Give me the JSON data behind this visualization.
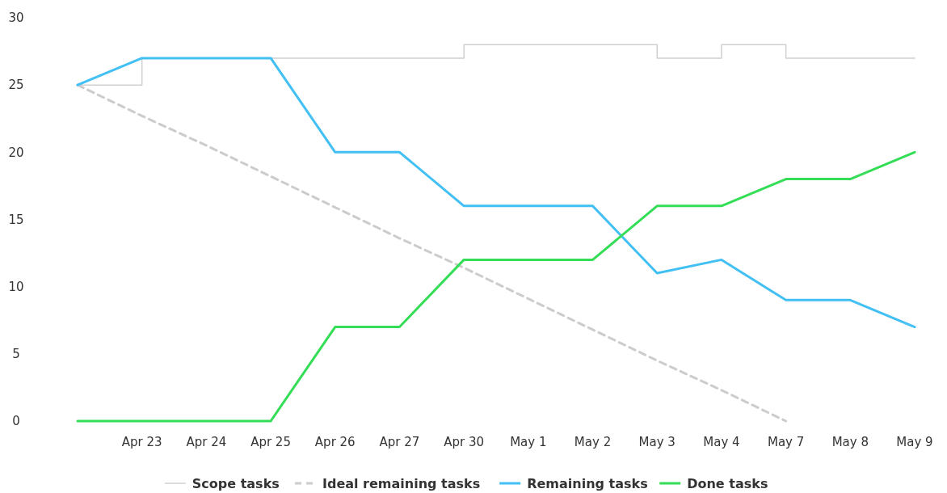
{
  "chart_data": {
    "type": "line",
    "categories": [
      null,
      "Apr 23",
      "Apr 24",
      "Apr 25",
      "Apr 26",
      "Apr 27",
      "Apr 30",
      "May 1",
      "May 2",
      "May 3",
      "May 4",
      "May 7",
      "May 8",
      "May 9"
    ],
    "ylim": [
      0,
      30
    ],
    "yticks": [
      0,
      5,
      10,
      15,
      20,
      25,
      30
    ],
    "grid": false,
    "legend": "bottom",
    "marker": "none",
    "series": [
      {
        "name": "Scope tasks",
        "type": "step",
        "color": "#d0d0d0",
        "line_style": "solid",
        "values": [
          25,
          27,
          27,
          27,
          27,
          27,
          28,
          28,
          28,
          27,
          28,
          27,
          27,
          27
        ]
      },
      {
        "name": "Ideal remaining tasks",
        "color": "#cccccc",
        "line_style": "dashed",
        "values": [
          25,
          22.7,
          20.5,
          18.2,
          15.9,
          13.6,
          11.4,
          9.1,
          6.8,
          4.5,
          2.3,
          0,
          null,
          null
        ]
      },
      {
        "name": "Remaining tasks",
        "color": "#42c0f4",
        "line_style": "solid",
        "values": [
          25,
          27,
          27,
          27,
          20,
          20,
          16,
          16,
          16,
          11,
          12,
          9,
          9,
          7
        ]
      },
      {
        "name": "Done tasks",
        "color": "#33dd55",
        "line_style": "solid",
        "values": [
          0,
          0,
          0,
          0,
          7,
          7,
          12,
          12,
          12,
          16,
          16,
          18,
          18,
          20
        ]
      }
    ]
  }
}
